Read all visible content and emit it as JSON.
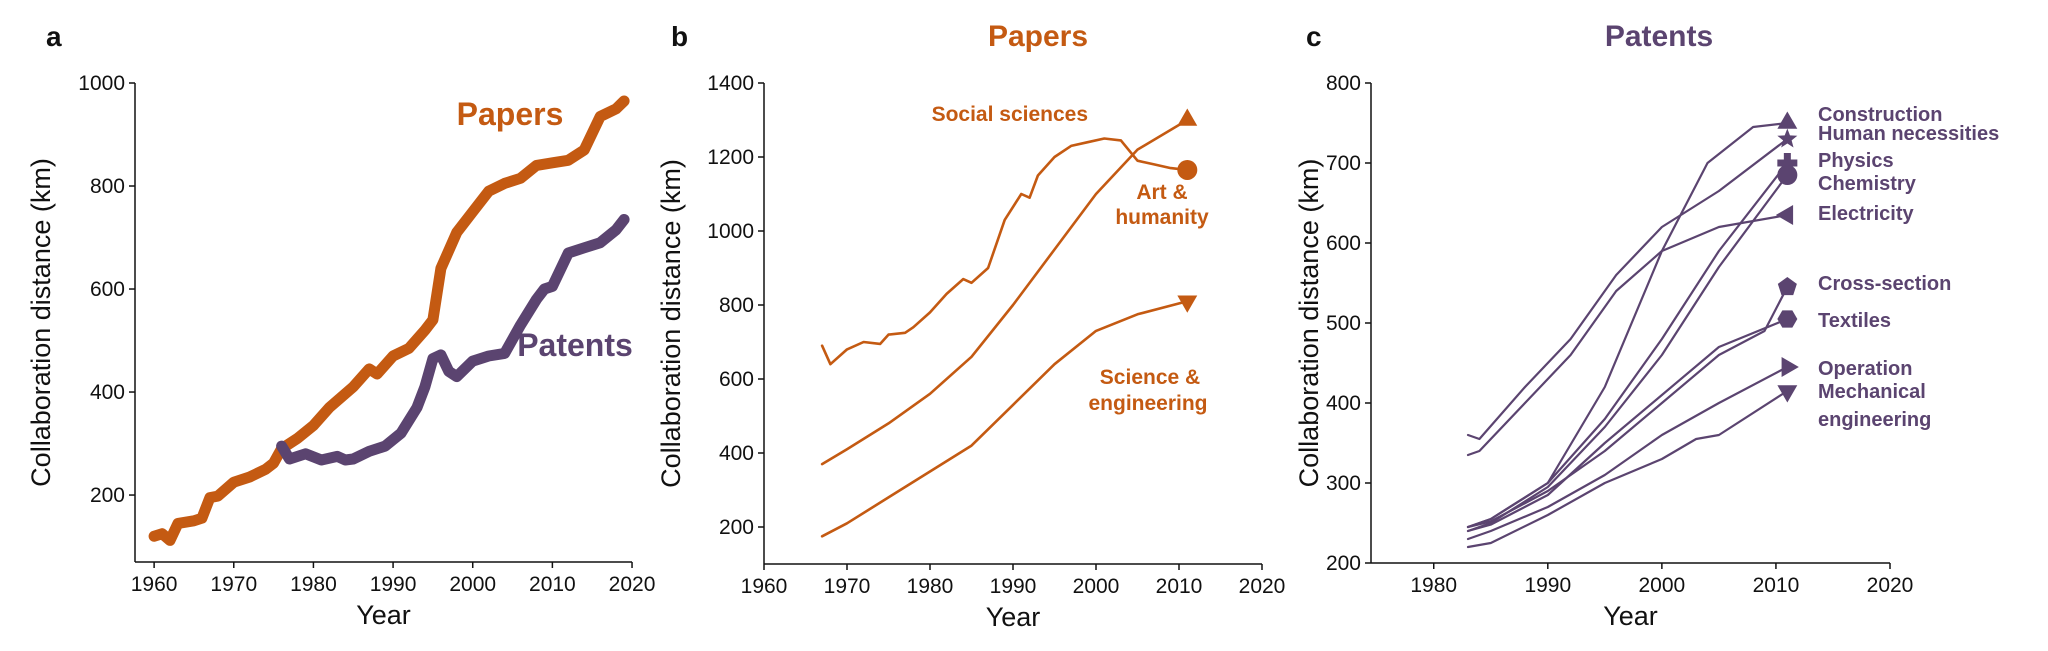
{
  "colors": {
    "papers": "#c45a12",
    "patents": "#5b4470",
    "axis": "#111111"
  },
  "chart_data": [
    {
      "type": "line",
      "panel": "a",
      "title": "",
      "xlabel": "Year",
      "ylabel": "Collaboration distance (km)",
      "xlim": [
        1957.6,
        2021
      ],
      "ylim": [
        70,
        1000
      ],
      "xticks": [
        1960,
        1970,
        1980,
        1990,
        2000,
        2010,
        2020
      ],
      "yticks": [
        200,
        400,
        600,
        800,
        1000
      ],
      "series": [
        {
          "name": "Papers",
          "color": "papers",
          "marker": "none",
          "x": [
            1960,
            1961,
            1962,
            1963,
            1965,
            1966,
            1967,
            1968,
            1970,
            1972,
            1974,
            1975,
            1976,
            1978,
            1980,
            1982,
            1985,
            1987,
            1988,
            1990,
            1992,
            1994,
            1995,
            1996,
            1998,
            2000,
            2002,
            2004,
            2006,
            2008,
            2010,
            2012,
            2014,
            2016,
            2018,
            2019
          ],
          "y": [
            120,
            125,
            112,
            145,
            150,
            155,
            195,
            198,
            225,
            235,
            250,
            262,
            290,
            310,
            335,
            370,
            410,
            445,
            435,
            470,
            485,
            520,
            540,
            640,
            710,
            750,
            790,
            805,
            815,
            840,
            845,
            850,
            870,
            935,
            950,
            965
          ]
        },
        {
          "name": "Patents",
          "color": "patents",
          "marker": "none",
          "x": [
            1976,
            1977,
            1979,
            1981,
            1983,
            1984,
            1985,
            1987,
            1989,
            1991,
            1993,
            1994,
            1995,
            1996,
            1997,
            1998,
            2000,
            2002,
            2004,
            2006,
            2008,
            2009,
            2010,
            2012,
            2014,
            2016,
            2018,
            2019
          ],
          "y": [
            295,
            270,
            280,
            268,
            275,
            268,
            270,
            285,
            295,
            320,
            370,
            410,
            465,
            472,
            440,
            430,
            460,
            470,
            475,
            530,
            580,
            600,
            605,
            670,
            680,
            690,
            715,
            735
          ]
        }
      ]
    },
    {
      "type": "line",
      "panel": "b",
      "title": "Papers",
      "xlabel": "Year",
      "ylabel": "Collaboration distance (km)",
      "xlim": [
        1960,
        2020
      ],
      "ylim": [
        100,
        1400
      ],
      "xticks": [
        1960,
        1970,
        1980,
        1990,
        2000,
        2010,
        2020
      ],
      "yticks": [
        200,
        400,
        600,
        800,
        1000,
        1200,
        1400
      ],
      "series": [
        {
          "name": "Social sciences",
          "color": "papers",
          "marker": "triangle-up",
          "x": [
            1967,
            1970,
            1975,
            1980,
            1985,
            1990,
            1995,
            2000,
            2005,
            2011
          ],
          "y": [
            370,
            410,
            480,
            560,
            660,
            800,
            950,
            1100,
            1220,
            1300
          ]
        },
        {
          "name": "Art & humanity",
          "color": "papers",
          "marker": "circle",
          "x": [
            1967,
            1968,
            1970,
            1972,
            1974,
            1975,
            1977,
            1978,
            1980,
            1982,
            1983,
            1984,
            1985,
            1987,
            1989,
            1991,
            1992,
            1993,
            1995,
            1997,
            1999,
            2001,
            2003,
            2005,
            2007,
            2009,
            2011
          ],
          "y": [
            690,
            640,
            680,
            700,
            695,
            720,
            725,
            740,
            780,
            830,
            850,
            870,
            860,
            900,
            1030,
            1100,
            1090,
            1150,
            1200,
            1230,
            1240,
            1250,
            1245,
            1190,
            1180,
            1170,
            1165
          ]
        },
        {
          "name": "Science & engineering",
          "color": "papers",
          "marker": "triangle-down",
          "x": [
            1967,
            1970,
            1975,
            1980,
            1985,
            1990,
            1995,
            2000,
            2005,
            2011
          ],
          "y": [
            175,
            210,
            280,
            350,
            420,
            530,
            640,
            730,
            775,
            810
          ]
        }
      ]
    },
    {
      "type": "line",
      "panel": "c",
      "title": "Patents",
      "xlabel": "Year",
      "ylabel": "Collaboration distance (km)",
      "xlim": [
        1974.5,
        2020
      ],
      "ylim": [
        200,
        800
      ],
      "xticks": [
        1980,
        1990,
        2000,
        2010,
        2020
      ],
      "yticks": [
        200,
        300,
        400,
        500,
        600,
        700,
        800
      ],
      "series": [
        {
          "name": "Construction",
          "color": "patents",
          "marker": "triangle-up",
          "x": [
            1983,
            1985,
            1990,
            1995,
            2000,
            2004,
            2008,
            2011
          ],
          "y": [
            245,
            255,
            300,
            420,
            590,
            700,
            745,
            750
          ]
        },
        {
          "name": "Human necessities",
          "color": "patents",
          "marker": "star",
          "x": [
            1983,
            1984,
            1988,
            1992,
            1996,
            2000,
            2005,
            2011
          ],
          "y": [
            360,
            355,
            420,
            480,
            560,
            620,
            665,
            730
          ]
        },
        {
          "name": "Physics",
          "color": "patents",
          "marker": "plus",
          "x": [
            1983,
            1985,
            1990,
            1995,
            2000,
            2005,
            2011
          ],
          "y": [
            245,
            255,
            300,
            380,
            480,
            590,
            700
          ]
        },
        {
          "name": "Chemistry",
          "color": "patents",
          "marker": "circle",
          "x": [
            1983,
            1985,
            1990,
            1995,
            2000,
            2005,
            2011
          ],
          "y": [
            240,
            250,
            295,
            370,
            460,
            570,
            685
          ]
        },
        {
          "name": "Electricity",
          "color": "patents",
          "marker": "triangle-left",
          "x": [
            1983,
            1984,
            1988,
            1992,
            1996,
            2000,
            2005,
            2011
          ],
          "y": [
            335,
            340,
            400,
            460,
            540,
            590,
            620,
            635
          ]
        },
        {
          "name": "Cross-section",
          "color": "patents",
          "marker": "pentagon",
          "x": [
            1983,
            1985,
            1990,
            1995,
            2000,
            2005,
            2009,
            2011
          ],
          "y": [
            245,
            252,
            290,
            340,
            400,
            460,
            490,
            545
          ]
        },
        {
          "name": "Textiles",
          "color": "patents",
          "marker": "hexagon",
          "x": [
            1983,
            1985,
            1990,
            1995,
            2000,
            2005,
            2011
          ],
          "y": [
            240,
            248,
            285,
            350,
            410,
            470,
            505
          ]
        },
        {
          "name": "Operation",
          "color": "patents",
          "marker": "triangle-right",
          "x": [
            1983,
            1985,
            1990,
            1995,
            2000,
            2005,
            2011
          ],
          "y": [
            230,
            240,
            270,
            310,
            360,
            400,
            445
          ]
        },
        {
          "name": "Mechanical engineering",
          "color": "patents",
          "marker": "triangle-down",
          "x": [
            1983,
            1985,
            1990,
            1995,
            2000,
            2003,
            2005,
            2011
          ],
          "y": [
            220,
            225,
            260,
            300,
            330,
            355,
            360,
            415
          ]
        }
      ]
    }
  ],
  "panels": {
    "a": {
      "letter": "a",
      "labels": [
        "Papers",
        "Patents"
      ]
    },
    "b": {
      "letter": "b",
      "labels": [
        "Social sciences",
        "Art &",
        "humanity",
        "Science &",
        "engineering"
      ]
    },
    "c": {
      "letter": "c",
      "labels": [
        "Construction",
        "Human necessities",
        "Physics",
        "Chemistry",
        "Electricity",
        "Cross-section",
        "Textiles",
        "Operation",
        "Mechanical",
        "engineering"
      ]
    }
  }
}
